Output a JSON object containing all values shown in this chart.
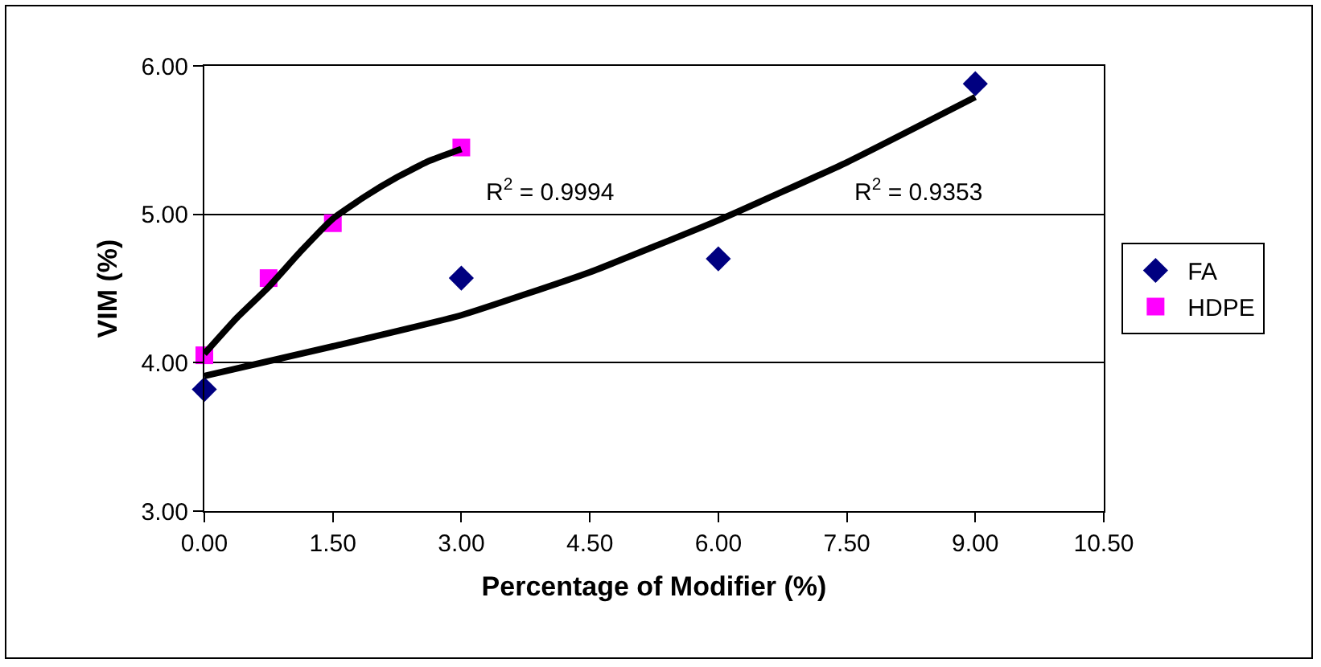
{
  "chart_data": {
    "type": "scatter",
    "xlabel": "Percentage of Modifier (%)",
    "ylabel": "VIM (%)",
    "xlim": [
      0,
      10.5
    ],
    "xticks": [
      {
        "value": 0,
        "label": "0.00"
      },
      {
        "value": 1.5,
        "label": "1.50"
      },
      {
        "value": 3,
        "label": "3.00"
      },
      {
        "value": 4.5,
        "label": "4.50"
      },
      {
        "value": 6,
        "label": "6.00"
      },
      {
        "value": 7.5,
        "label": "7.50"
      },
      {
        "value": 9,
        "label": "9.00"
      },
      {
        "value": 10.5,
        "label": "10.50"
      }
    ],
    "ylim": [
      3,
      6
    ],
    "yticks": [
      {
        "value": 3,
        "label": "3.00"
      },
      {
        "value": 4,
        "label": "4.00"
      },
      {
        "value": 5,
        "label": "5.00"
      },
      {
        "value": 6,
        "label": "6.00"
      }
    ],
    "grid": "y",
    "legend": "right",
    "series": [
      {
        "name": "FA",
        "color": "#000080",
        "marker": "diamond",
        "x": [
          0,
          3,
          6,
          9
        ],
        "values": [
          3.82,
          4.57,
          4.7,
          5.88
        ]
      },
      {
        "name": "HDPE",
        "color": "#ff00ff",
        "marker": "square",
        "x": [
          0,
          0.75,
          1.5,
          3
        ],
        "values": [
          4.05,
          4.57,
          4.94,
          5.45
        ]
      },
      {
        "type": "line",
        "color": "#000000",
        "marker": "none",
        "line_style": "solid",
        "x": [
          0,
          1.5,
          3,
          4.5,
          6,
          7.5,
          9
        ],
        "values": [
          3.91,
          4.11,
          4.32,
          4.61,
          4.96,
          5.35,
          5.79
        ]
      },
      {
        "type": "line",
        "color": "#000000",
        "marker": "none",
        "line_style": "solid",
        "x": [
          0,
          0.375,
          0.75,
          1.125,
          1.5,
          1.875,
          2.25,
          2.625,
          3
        ],
        "values": [
          4.06,
          4.3,
          4.51,
          4.75,
          4.97,
          5.12,
          5.25,
          5.36,
          5.44
        ]
      }
    ],
    "annotations": [
      "R$^{2}$ = 0.9994",
      "R$^{2}$ = 0.9353"
    ]
  }
}
